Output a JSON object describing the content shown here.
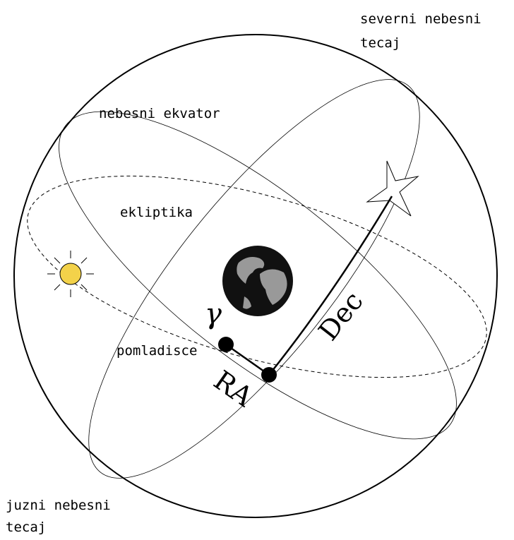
{
  "labels": {
    "north_pole": [
      "severni nebesni",
      "tecaj"
    ],
    "equator": "nebesni ekvator",
    "ecliptic": "ekliptika",
    "vernal_equinox": "pomladisce",
    "gamma": "γ",
    "ra": "RA",
    "dec": "Dec",
    "south_pole": [
      "juzni nebesni",
      "tecaj"
    ]
  }
}
